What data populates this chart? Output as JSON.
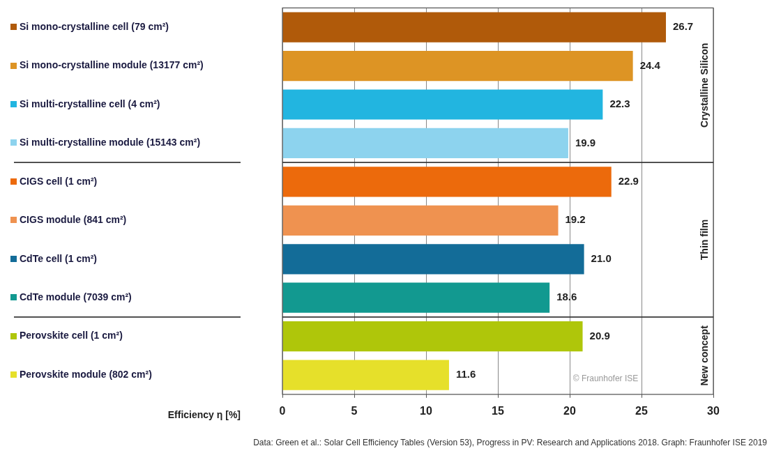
{
  "chart_data": {
    "type": "bar",
    "orientation": "horizontal",
    "xlabel": "Efficiency η [%]",
    "categories": [
      "Si mono-crystalline cell (79 cm²)",
      "Si mono-crystalline module (13177 cm²)",
      "Si multi-crystalline cell (4 cm²)",
      "Si multi-crystalline module (15143 cm²)",
      "CIGS cell (1 cm²)",
      "CIGS module (841 cm²)",
      "CdTe cell (1 cm²)",
      "CdTe module (7039 cm²)",
      "Perovskite cell (1 cm²)",
      "Perovskite module (802 cm²)"
    ],
    "values": [
      26.7,
      24.4,
      22.3,
      19.9,
      22.9,
      19.2,
      21.0,
      18.6,
      20.9,
      11.6
    ],
    "colors": [
      "#b05a0a",
      "#dd9424",
      "#22b5e0",
      "#8dd3ee",
      "#ec6a0c",
      "#ef9250",
      "#136c98",
      "#129990",
      "#afc60a",
      "#e6e02a"
    ],
    "value_labels": [
      "26.7",
      "24.4",
      "22.3",
      "19.9",
      "22.9",
      "19.2",
      "21.0",
      "18.6",
      "20.9",
      "11.6"
    ],
    "xlim": [
      0,
      30
    ],
    "xticks": [
      0,
      5,
      10,
      15,
      20,
      25,
      30
    ],
    "grid": "x",
    "annotations": [
      "Crystalline Silicon",
      "Thin film",
      "New concept",
      "© Fraunhofer ISE",
      "Data: Green et al.: Solar Cell Efficiency Tables (Version 53), Progress in PV: Research and Applications 2018. Graph: Fraunhofer ISE 2019"
    ]
  }
}
